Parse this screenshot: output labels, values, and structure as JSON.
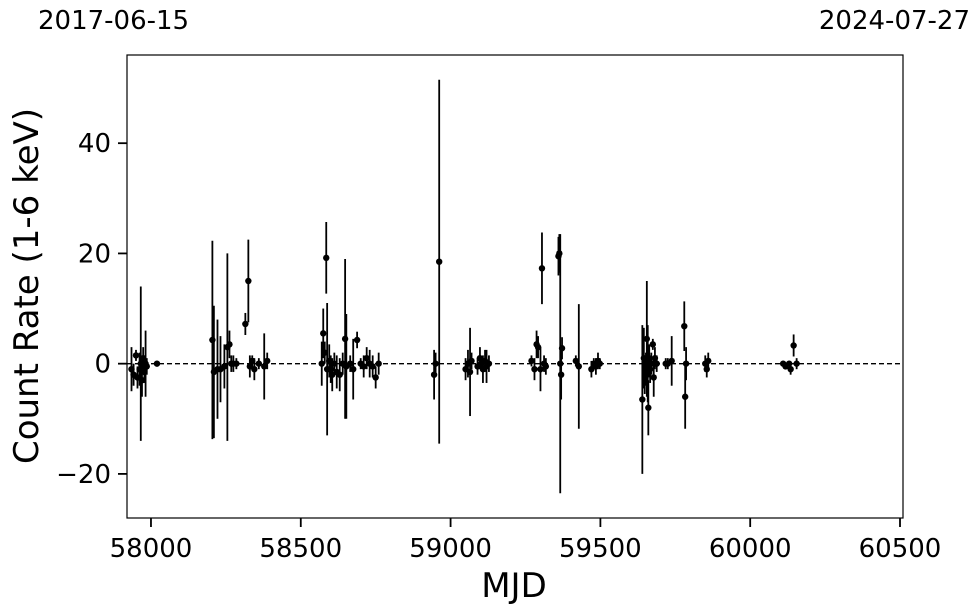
{
  "top_dates": {
    "left": "2017-06-15",
    "right": "2024-07-27"
  },
  "chart_data": {
    "type": "scatter",
    "xlabel": "MJD",
    "ylabel": "Count Rate (1-6 keV)",
    "xlim": [
      57920,
      60510
    ],
    "ylim": [
      -28,
      56
    ],
    "xticks": [
      58000,
      58500,
      59000,
      59500,
      60000,
      60500
    ],
    "yticks": [
      -20,
      0,
      20,
      40
    ],
    "xtick_labels": [
      "58000",
      "58500",
      "59000",
      "59500",
      "60000",
      "60500"
    ],
    "ytick_labels": [
      "−20",
      "0",
      "20",
      "40"
    ],
    "reference_line": {
      "y": 0,
      "style": "dashed"
    },
    "grid": false,
    "colors": {
      "points": "#000000",
      "errorbars": "#000000"
    },
    "points": [
      {
        "x": 57935,
        "y": -1.0,
        "err": 4.0
      },
      {
        "x": 57942,
        "y": -2.0,
        "err": 2.0
      },
      {
        "x": 57950,
        "y": 1.5,
        "err": 1.0
      },
      {
        "x": 57955,
        "y": -2.5,
        "err": 2.0
      },
      {
        "x": 57962,
        "y": -1.0,
        "err": 3.0
      },
      {
        "x": 57966,
        "y": 0.0,
        "err": 14.0
      },
      {
        "x": 57970,
        "y": -3.0,
        "err": 3.0
      },
      {
        "x": 57974,
        "y": 1.0,
        "err": 2.0
      },
      {
        "x": 57978,
        "y": -1.5,
        "err": 2.0
      },
      {
        "x": 57982,
        "y": 0.0,
        "err": 6.0
      },
      {
        "x": 57986,
        "y": -0.5,
        "err": 1.5
      },
      {
        "x": 58020,
        "y": 0.0,
        "err": 0.5
      },
      {
        "x": 58205,
        "y": 4.3,
        "err": 18.0
      },
      {
        "x": 58210,
        "y": -1.5,
        "err": 12.0
      },
      {
        "x": 58222,
        "y": -1.0,
        "err": 9.0
      },
      {
        "x": 58232,
        "y": -1.0,
        "err": 6.0
      },
      {
        "x": 58245,
        "y": -0.5,
        "err": 4.0
      },
      {
        "x": 58255,
        "y": 3.0,
        "err": 17.0
      },
      {
        "x": 58262,
        "y": 3.5,
        "err": 2.5
      },
      {
        "x": 58268,
        "y": 0.0,
        "err": 1.5
      },
      {
        "x": 58275,
        "y": 0.0,
        "err": 1.5
      },
      {
        "x": 58285,
        "y": 0.0,
        "err": 1.0
      },
      {
        "x": 58315,
        "y": 7.2,
        "err": 2.0
      },
      {
        "x": 58325,
        "y": 15.0,
        "err": 7.5
      },
      {
        "x": 58330,
        "y": -0.5,
        "err": 2.0
      },
      {
        "x": 58338,
        "y": 0.5,
        "err": 1.0
      },
      {
        "x": 58345,
        "y": -1.0,
        "err": 2.0
      },
      {
        "x": 58360,
        "y": 0.0,
        "err": 1.0
      },
      {
        "x": 58378,
        "y": -0.5,
        "err": 6.0
      },
      {
        "x": 58388,
        "y": 0.5,
        "err": 1.5
      },
      {
        "x": 58570,
        "y": 0.0,
        "err": 4.0
      },
      {
        "x": 58575,
        "y": 5.5,
        "err": 4.5
      },
      {
        "x": 58580,
        "y": 2.0,
        "err": 2.0
      },
      {
        "x": 58585,
        "y": 19.2,
        "err": 6.5
      },
      {
        "x": 58588,
        "y": -1.0,
        "err": 12.0
      },
      {
        "x": 58595,
        "y": 0.5,
        "err": 3.0
      },
      {
        "x": 58600,
        "y": -1.0,
        "err": 2.5
      },
      {
        "x": 58605,
        "y": -2.0,
        "err": 3.0
      },
      {
        "x": 58612,
        "y": 0.0,
        "err": 2.0
      },
      {
        "x": 58620,
        "y": -1.5,
        "err": 3.0
      },
      {
        "x": 58630,
        "y": -2.0,
        "err": 3.0
      },
      {
        "x": 58640,
        "y": 0.0,
        "err": 2.0
      },
      {
        "x": 58648,
        "y": 4.5,
        "err": 14.5
      },
      {
        "x": 58652,
        "y": -0.5,
        "err": 9.5
      },
      {
        "x": 58665,
        "y": 0.0,
        "err": 1.5
      },
      {
        "x": 58675,
        "y": -1.0,
        "err": 5.5
      },
      {
        "x": 58688,
        "y": 4.3,
        "err": 1.5
      },
      {
        "x": 58700,
        "y": 0.0,
        "err": 1.0
      },
      {
        "x": 58710,
        "y": -0.5,
        "err": 2.0
      },
      {
        "x": 58720,
        "y": 1.0,
        "err": 2.0
      },
      {
        "x": 58730,
        "y": 0.0,
        "err": 2.5
      },
      {
        "x": 58740,
        "y": -0.5,
        "err": 2.0
      },
      {
        "x": 58750,
        "y": -2.5,
        "err": 2.0
      },
      {
        "x": 58760,
        "y": 0.0,
        "err": 2.0
      },
      {
        "x": 58945,
        "y": -2.0,
        "err": 4.5
      },
      {
        "x": 58950,
        "y": 0.0,
        "err": 2.0
      },
      {
        "x": 58962,
        "y": 18.5,
        "err": 33.0
      },
      {
        "x": 59050,
        "y": -1.0,
        "err": 2.0
      },
      {
        "x": 59058,
        "y": 0.0,
        "err": 2.5
      },
      {
        "x": 59065,
        "y": -1.5,
        "err": 8.0
      },
      {
        "x": 59070,
        "y": 0.5,
        "err": 1.5
      },
      {
        "x": 59090,
        "y": -0.5,
        "err": 1.5
      },
      {
        "x": 59098,
        "y": 1.0,
        "err": 2.0
      },
      {
        "x": 59102,
        "y": 0.0,
        "err": 1.0
      },
      {
        "x": 59108,
        "y": -1.0,
        "err": 2.5
      },
      {
        "x": 59115,
        "y": 0.5,
        "err": 2.0
      },
      {
        "x": 59120,
        "y": -0.5,
        "err": 3.0
      },
      {
        "x": 59128,
        "y": 0.0,
        "err": 1.5
      },
      {
        "x": 59270,
        "y": 0.5,
        "err": 1.0
      },
      {
        "x": 59280,
        "y": -1.0,
        "err": 2.0
      },
      {
        "x": 59287,
        "y": 3.5,
        "err": 2.5
      },
      {
        "x": 59292,
        "y": 3.0,
        "err": 2.0
      },
      {
        "x": 59300,
        "y": -1.0,
        "err": 4.0
      },
      {
        "x": 59305,
        "y": 17.3,
        "err": 6.5
      },
      {
        "x": 59312,
        "y": 0.0,
        "err": 1.5
      },
      {
        "x": 59318,
        "y": -0.5,
        "err": 1.5
      },
      {
        "x": 59360,
        "y": 19.5,
        "err": 3.5
      },
      {
        "x": 59363,
        "y": 20.0,
        "err": 3.5
      },
      {
        "x": 59366,
        "y": 0.0,
        "err": 23.5
      },
      {
        "x": 59369,
        "y": -2.0,
        "err": 4.5
      },
      {
        "x": 59372,
        "y": 2.8,
        "err": 2.0
      },
      {
        "x": 59418,
        "y": 0.5,
        "err": 1.0
      },
      {
        "x": 59428,
        "y": -0.5,
        "err": 11.3
      },
      {
        "x": 59470,
        "y": -1.0,
        "err": 1.5
      },
      {
        "x": 59478,
        "y": 0.0,
        "err": 1.0
      },
      {
        "x": 59485,
        "y": -0.5,
        "err": 1.5
      },
      {
        "x": 59492,
        "y": 0.5,
        "err": 1.5
      },
      {
        "x": 59498,
        "y": 0.0,
        "err": 1.0
      },
      {
        "x": 59640,
        "y": -6.5,
        "err": 13.5
      },
      {
        "x": 59645,
        "y": 1.0,
        "err": 5.5
      },
      {
        "x": 59648,
        "y": -2.5,
        "err": 3.0
      },
      {
        "x": 59652,
        "y": -1.0,
        "err": 3.0
      },
      {
        "x": 59655,
        "y": 4.5,
        "err": 10.5
      },
      {
        "x": 59658,
        "y": 0.0,
        "err": 7.0
      },
      {
        "x": 59660,
        "y": -8.0,
        "err": 5.0
      },
      {
        "x": 59663,
        "y": 0.5,
        "err": 3.0
      },
      {
        "x": 59666,
        "y": -1.0,
        "err": 2.5
      },
      {
        "x": 59670,
        "y": 0.0,
        "err": 2.0
      },
      {
        "x": 59675,
        "y": 3.5,
        "err": 1.0
      },
      {
        "x": 59678,
        "y": -2.5,
        "err": 3.5
      },
      {
        "x": 59682,
        "y": 1.0,
        "err": 2.0
      },
      {
        "x": 59688,
        "y": 0.0,
        "err": 1.5
      },
      {
        "x": 59718,
        "y": 0.0,
        "err": 1.0
      },
      {
        "x": 59725,
        "y": 0.0,
        "err": 1.0
      },
      {
        "x": 59738,
        "y": 0.5,
        "err": 4.5
      },
      {
        "x": 59780,
        "y": 6.8,
        "err": 4.5
      },
      {
        "x": 59783,
        "y": -6.0,
        "err": 5.8
      },
      {
        "x": 59786,
        "y": 0.0,
        "err": 3.0
      },
      {
        "x": 59850,
        "y": 0.0,
        "err": 1.5
      },
      {
        "x": 59855,
        "y": -1.0,
        "err": 1.5
      },
      {
        "x": 59860,
        "y": 0.5,
        "err": 1.5
      },
      {
        "x": 60110,
        "y": 0.0,
        "err": 0.5
      },
      {
        "x": 60118,
        "y": -0.5,
        "err": 0.5
      },
      {
        "x": 60130,
        "y": 0.0,
        "err": 0.5
      },
      {
        "x": 60135,
        "y": -1.0,
        "err": 1.0
      },
      {
        "x": 60145,
        "y": 3.3,
        "err": 2.0
      },
      {
        "x": 60155,
        "y": 0.0,
        "err": 1.0
      }
    ]
  }
}
